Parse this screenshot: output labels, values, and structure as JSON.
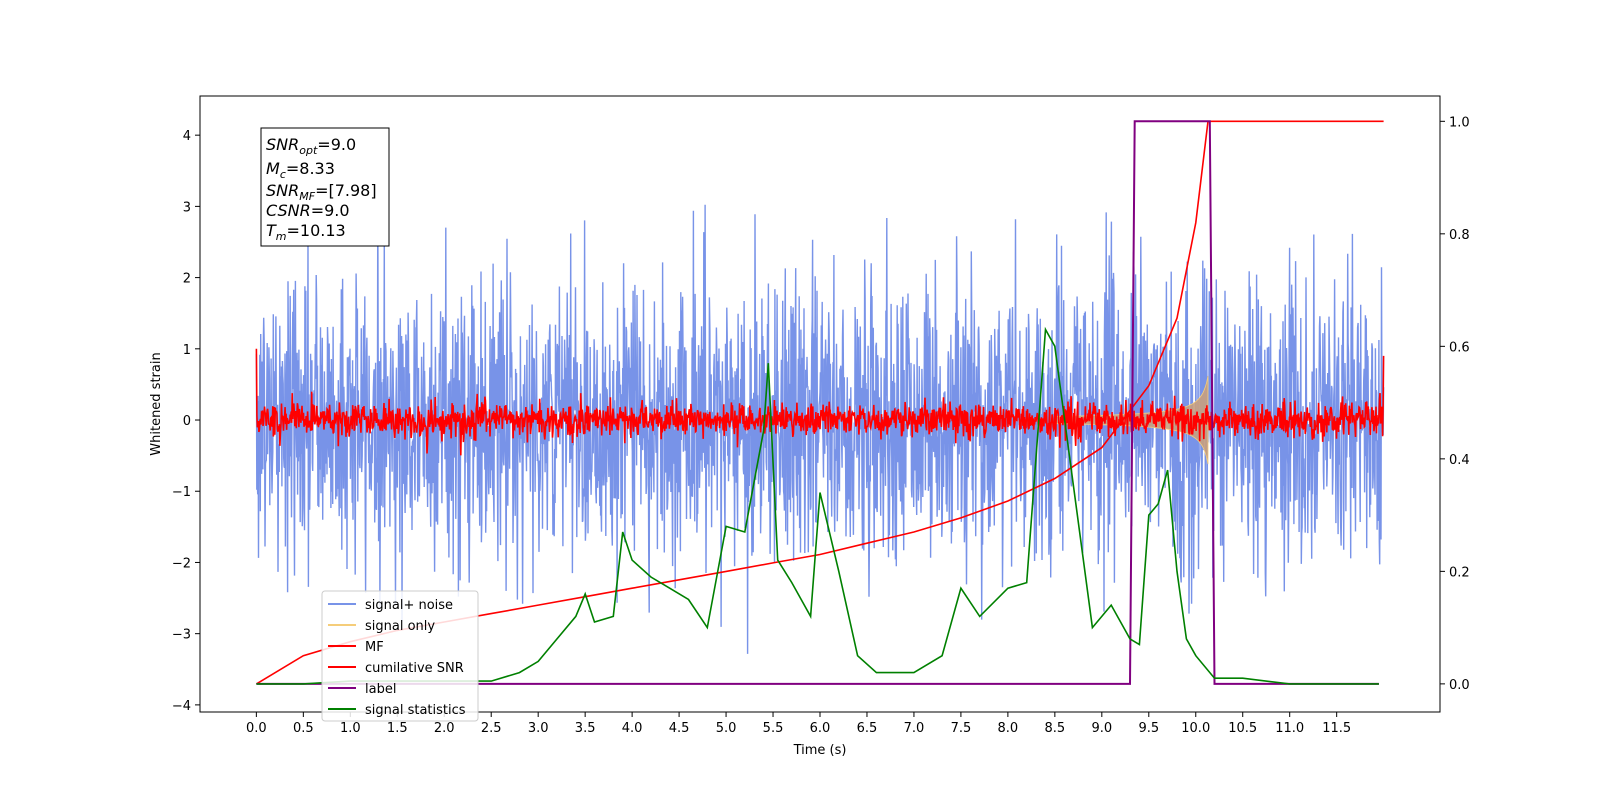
{
  "chart_data": {
    "type": "line",
    "xlabel": "Time (s)",
    "ylabel": "Whitened strain",
    "xlim": [
      -0.6,
      12.6
    ],
    "ylim": [
      -4.1,
      4.55
    ],
    "ylim_right": [
      -0.05,
      1.045
    ],
    "x_ticks": [
      "0.0",
      "0.5",
      "1.0",
      "1.5",
      "2.0",
      "2.5",
      "3.0",
      "3.5",
      "4.0",
      "4.5",
      "5.0",
      "5.5",
      "6.0",
      "6.5",
      "7.0",
      "7.5",
      "8.0",
      "8.5",
      "9.0",
      "9.5",
      "10.0",
      "10.5",
      "11.0",
      "11.5"
    ],
    "y_ticks_left": [
      "4",
      "3",
      "2",
      "1",
      "0",
      "−1",
      "−2",
      "−3",
      "−4"
    ],
    "y_ticks_right": [
      "1.0",
      "0.8",
      "0.6",
      "0.4",
      "0.2",
      "0.0"
    ],
    "annotation": {
      "snr_opt": {
        "base": "SNR",
        "sub": "opt",
        "value": "=9.0"
      },
      "mc": {
        "base": "M",
        "sub": "c",
        "value": "=8.33"
      },
      "snr_mf": {
        "base": "SNR",
        "sub": "MF",
        "value": "=[7.98]"
      },
      "csnr": {
        "base": "CSNR",
        "sub": "",
        "value": "=9.0"
      },
      "tm": {
        "base": "T",
        "sub": "m",
        "value": "=10.13"
      }
    },
    "legend": {
      "placement": "lower-left",
      "entries": [
        {
          "label": "signal+ noise",
          "color": "#7893e8"
        },
        {
          "label": "signal only",
          "color": "#f5cd7a"
        },
        {
          "label": "MF",
          "color": "#ff0000"
        },
        {
          "label": "cumilative SNR",
          "color": "#ff0000"
        },
        {
          "label": "label",
          "color": "#800080"
        },
        {
          "label": "signal statistics",
          "color": "#008000"
        }
      ]
    },
    "series": [
      {
        "name": "cumilative SNR",
        "axis": "right",
        "color": "#ff0000",
        "x": [
          0.0,
          0.5,
          1.0,
          1.5,
          2.0,
          2.5,
          3.0,
          3.5,
          4.0,
          4.5,
          5.0,
          5.5,
          6.0,
          6.5,
          7.0,
          7.5,
          8.0,
          8.5,
          9.0,
          9.5,
          9.8,
          10.0,
          10.13,
          10.2,
          11.0,
          12.0
        ],
        "values": [
          0.0,
          0.05,
          0.075,
          0.095,
          0.11,
          0.125,
          0.14,
          0.155,
          0.17,
          0.185,
          0.2,
          0.215,
          0.23,
          0.25,
          0.27,
          0.295,
          0.325,
          0.365,
          0.42,
          0.53,
          0.65,
          0.82,
          1.0,
          1.0,
          1.0,
          1.0
        ]
      },
      {
        "name": "label",
        "axis": "right",
        "color": "#800080",
        "x": [
          0.0,
          9.3,
          9.35,
          10.15,
          10.2,
          11.95
        ],
        "values": [
          0.0,
          0.0,
          1.0,
          1.0,
          0.0,
          0.0
        ]
      },
      {
        "name": "signal statistics",
        "axis": "right",
        "color": "#008000",
        "x": [
          0.0,
          0.5,
          1.0,
          1.5,
          2.0,
          2.5,
          2.8,
          3.0,
          3.2,
          3.4,
          3.5,
          3.6,
          3.8,
          3.9,
          4.0,
          4.2,
          4.4,
          4.6,
          4.8,
          5.0,
          5.2,
          5.4,
          5.45,
          5.55,
          5.7,
          5.9,
          6.0,
          6.2,
          6.4,
          6.6,
          7.0,
          7.3,
          7.5,
          7.7,
          8.0,
          8.2,
          8.4,
          8.5,
          8.7,
          8.9,
          9.1,
          9.3,
          9.4,
          9.5,
          9.6,
          9.7,
          9.8,
          9.9,
          10.0,
          10.2,
          10.5,
          11.0,
          11.5,
          11.95
        ],
        "values": [
          0.0,
          0.0,
          0.005,
          0.005,
          0.005,
          0.005,
          0.02,
          0.04,
          0.08,
          0.12,
          0.16,
          0.11,
          0.12,
          0.27,
          0.22,
          0.19,
          0.17,
          0.15,
          0.1,
          0.28,
          0.27,
          0.45,
          0.57,
          0.22,
          0.18,
          0.12,
          0.34,
          0.2,
          0.05,
          0.02,
          0.02,
          0.05,
          0.17,
          0.12,
          0.17,
          0.18,
          0.63,
          0.6,
          0.35,
          0.1,
          0.14,
          0.08,
          0.07,
          0.3,
          0.32,
          0.38,
          0.2,
          0.08,
          0.05,
          0.01,
          0.01,
          0.0,
          0.0,
          0.0
        ]
      },
      {
        "name": "signal+ noise",
        "axis": "left",
        "color": "#7893e8",
        "x_range": [
          0.0,
          12.0
        ],
        "std": 1.0,
        "extent": [
          -3.5,
          4.2
        ]
      },
      {
        "name": "MF",
        "axis": "left",
        "color": "#ff0000",
        "x_range": [
          0.0,
          12.0
        ],
        "std": 0.12
      },
      {
        "name": "signal only",
        "axis": "left",
        "color": "#f5cd7a",
        "x_range": [
          8.5,
          10.13
        ],
        "peak_amplitude": 1.25
      }
    ]
  }
}
